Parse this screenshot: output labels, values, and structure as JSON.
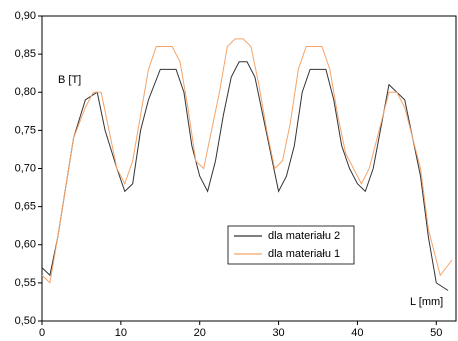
{
  "chart_data": {
    "type": "line",
    "y_label": "B [T]",
    "x_label": "L [mm]",
    "xlim": [
      0,
      52.5
    ],
    "xticks": [
      0,
      10,
      20,
      30,
      40,
      50
    ],
    "ylim": [
      0.5,
      0.9
    ],
    "yticks": [
      {
        "value": 0.5,
        "label": "0,50"
      },
      {
        "value": 0.55,
        "label": "0,55"
      },
      {
        "value": 0.6,
        "label": "0,60"
      },
      {
        "value": 0.65,
        "label": "0,65"
      },
      {
        "value": 0.7,
        "label": "0,70"
      },
      {
        "value": 0.75,
        "label": "0,75"
      },
      {
        "value": 0.8,
        "label": "0,80"
      },
      {
        "value": 0.85,
        "label": "0,85"
      },
      {
        "value": 0.9,
        "label": "0,90"
      }
    ],
    "grid": false,
    "legend": "lower-center",
    "series": [
      {
        "name": "dla materiału 2",
        "color": "#333333",
        "x": [
          0,
          1,
          2,
          4,
          5.5,
          7,
          8,
          9.5,
          10.5,
          11.5,
          12.5,
          13.5,
          15,
          17,
          18,
          19,
          20,
          21,
          22,
          23,
          24,
          25,
          26,
          27,
          28,
          29,
          30,
          31,
          32,
          33,
          34,
          36,
          37,
          38,
          39,
          40,
          41,
          42,
          44,
          45,
          46,
          47,
          48,
          49,
          50,
          51.5
        ],
        "values": [
          0.57,
          0.56,
          0.61,
          0.74,
          0.79,
          0.8,
          0.75,
          0.7,
          0.67,
          0.68,
          0.75,
          0.79,
          0.83,
          0.83,
          0.8,
          0.73,
          0.69,
          0.67,
          0.71,
          0.77,
          0.82,
          0.84,
          0.84,
          0.82,
          0.77,
          0.72,
          0.67,
          0.69,
          0.73,
          0.8,
          0.83,
          0.83,
          0.79,
          0.73,
          0.7,
          0.68,
          0.67,
          0.7,
          0.81,
          0.8,
          0.79,
          0.74,
          0.69,
          0.61,
          0.55,
          0.54
        ]
      },
      {
        "name": "dla materiału 1",
        "color": "#f5a46a",
        "x": [
          0,
          1,
          2,
          4,
          5.5,
          6.5,
          7.5,
          8.5,
          9.5,
          10.5,
          11.5,
          12.5,
          13.5,
          14.5,
          16.5,
          17.5,
          18.5,
          19.5,
          20.5,
          21.5,
          22.5,
          23.5,
          24.5,
          25.5,
          26.5,
          27.5,
          28.5,
          29.5,
          30.5,
          31.5,
          32.5,
          33.5,
          35.5,
          36.5,
          37.5,
          38.5,
          39.5,
          40.5,
          41.5,
          43,
          44,
          45,
          46,
          47,
          48,
          49,
          50.5,
          52
        ],
        "values": [
          0.56,
          0.55,
          0.61,
          0.74,
          0.78,
          0.8,
          0.8,
          0.75,
          0.7,
          0.68,
          0.71,
          0.77,
          0.83,
          0.86,
          0.86,
          0.84,
          0.78,
          0.71,
          0.7,
          0.75,
          0.8,
          0.86,
          0.87,
          0.87,
          0.86,
          0.81,
          0.75,
          0.7,
          0.71,
          0.76,
          0.83,
          0.86,
          0.86,
          0.83,
          0.77,
          0.72,
          0.7,
          0.68,
          0.7,
          0.76,
          0.8,
          0.8,
          0.78,
          0.74,
          0.7,
          0.62,
          0.56,
          0.58
        ]
      }
    ]
  }
}
